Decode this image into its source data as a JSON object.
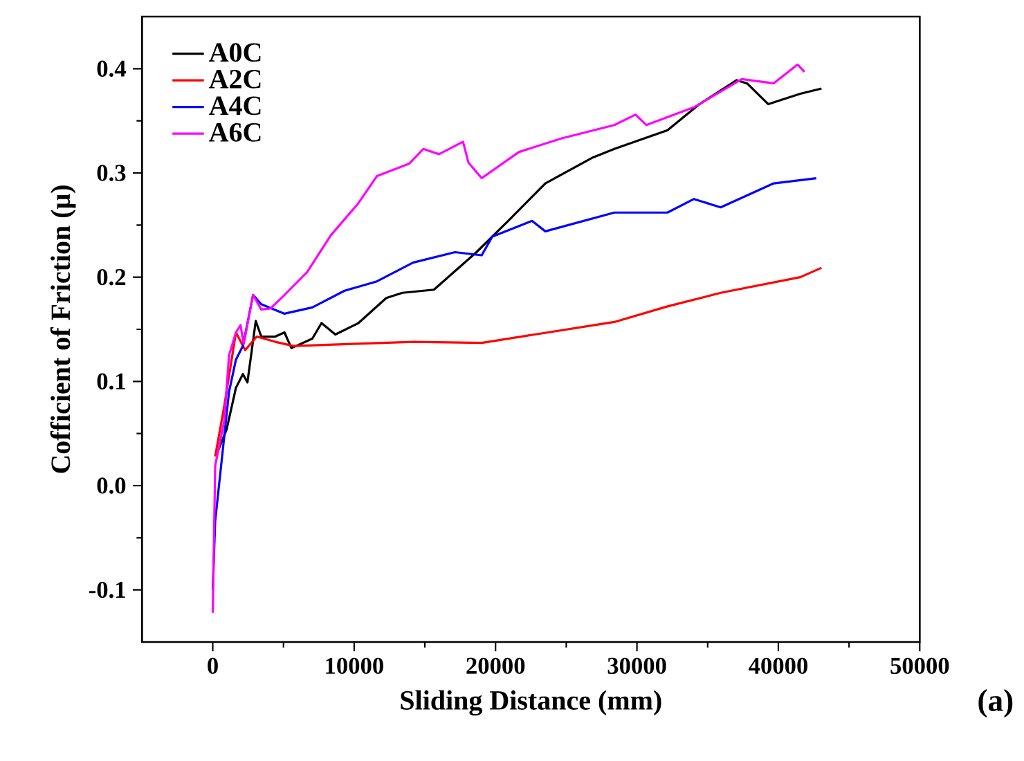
{
  "chart_data": {
    "type": "line",
    "xlabel": "Sliding Distance (mm)",
    "ylabel": "Cofficient of Friction (μ)",
    "annotations": [
      "(a)"
    ],
    "xlim": [
      -5000,
      50000
    ],
    "xticks": [
      0,
      10000,
      20000,
      30000,
      40000,
      50000
    ],
    "ylim": [
      -0.15,
      0.45
    ],
    "yticks": [
      {
        "value": -0.1,
        "label": "-0.1"
      },
      {
        "value": 0,
        "label": "0.0"
      },
      {
        "value": 0.1,
        "label": "0.1"
      },
      {
        "value": 0.2,
        "label": "0.2"
      },
      {
        "value": 0.3,
        "label": "0.3"
      },
      {
        "value": 0.4,
        "label": "0.4"
      }
    ],
    "legend": "top left",
    "marker": "none",
    "line_style": "solid",
    "series": [
      {
        "name": "A0C",
        "color": "#000000",
        "x": [
          330,
          980,
          1640,
          2130,
          2450,
          3040,
          3430,
          4420,
          5070,
          5560,
          7040,
          7690,
          8670,
          10300,
          12270,
          13410,
          15640,
          18650,
          20890,
          23520,
          26900,
          28400,
          32160,
          34420,
          37050,
          37780,
          39290,
          41550,
          43050
        ],
        "values": [
          0.032,
          0.054,
          0.094,
          0.107,
          0.099,
          0.158,
          0.143,
          0.143,
          0.147,
          0.132,
          0.141,
          0.156,
          0.145,
          0.156,
          0.18,
          0.185,
          0.188,
          0.224,
          0.254,
          0.29,
          0.315,
          0.323,
          0.341,
          0.366,
          0.389,
          0.386,
          0.366,
          0.376,
          0.381
        ]
      },
      {
        "name": "A2C",
        "color": "#ff0000",
        "x": [
          170,
          820,
          1640,
          2290,
          3110,
          4420,
          5720,
          14230,
          19020,
          22770,
          28400,
          32160,
          35920,
          41550,
          43050
        ],
        "values": [
          0.028,
          0.077,
          0.147,
          0.13,
          0.143,
          0.138,
          0.134,
          0.138,
          0.137,
          0.145,
          0.157,
          0.172,
          0.185,
          0.2,
          0.209
        ]
      },
      {
        "name": "A4C",
        "color": "#0000ff",
        "x": [
          0,
          170,
          660,
          1150,
          1640,
          2130,
          2850,
          3430,
          5070,
          7040,
          9320,
          11610,
          14160,
          17130,
          19020,
          19770,
          22580,
          23520,
          28400,
          32160,
          34030,
          35920,
          39670,
          42680
        ],
        "values": [
          -0.1,
          -0.034,
          0.028,
          0.09,
          0.121,
          0.134,
          0.183,
          0.174,
          0.165,
          0.171,
          0.187,
          0.196,
          0.214,
          0.224,
          0.221,
          0.239,
          0.254,
          0.244,
          0.262,
          0.262,
          0.275,
          0.267,
          0.29,
          0.295
        ]
      },
      {
        "name": "A6C",
        "color": "#ff00ff",
        "x": [
          0,
          170,
          820,
          1150,
          1640,
          1960,
          2190,
          2850,
          3430,
          4090,
          5070,
          6680,
          8340,
          10300,
          11610,
          13900,
          14890,
          16000,
          17700,
          18080,
          19020,
          21640,
          24630,
          28400,
          29900,
          30660,
          34030,
          37420,
          39670,
          41360,
          41850
        ],
        "values": [
          -0.122,
          0.019,
          0.063,
          0.125,
          0.147,
          0.154,
          0.136,
          0.183,
          0.169,
          0.17,
          0.183,
          0.205,
          0.24,
          0.271,
          0.297,
          0.309,
          0.323,
          0.318,
          0.33,
          0.31,
          0.295,
          0.32,
          0.333,
          0.346,
          0.356,
          0.346,
          0.363,
          0.39,
          0.386,
          0.404,
          0.397
        ]
      }
    ]
  }
}
